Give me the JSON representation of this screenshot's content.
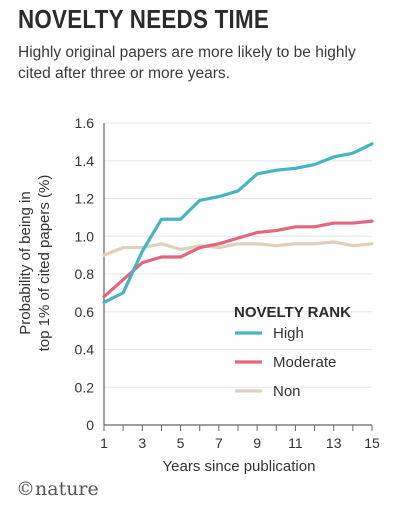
{
  "title": "NOVELTY NEEDS TIME",
  "subtitle": "Highly original papers are more likely to be highly cited after three or more years.",
  "logo": {
    "text": "nature",
    "copyright_symbol": "©"
  },
  "colors": {
    "high": "#45b5c2",
    "moderate": "#e3677c",
    "non": "#dfcfbc",
    "axis": "#666666",
    "grid": "#e6e6e6",
    "text": "#333333"
  },
  "chart_data": {
    "type": "line",
    "title": "NOVELTY NEEDS TIME",
    "subtitle": "Highly original papers are more likely to be highly cited after three or more years.",
    "xlabel": "Years since publication",
    "ylabel": "Probability of being in top 1% of cited papers (%)",
    "ylabel_lines": [
      "Probability of being in",
      "top 1% of cited papers (%)"
    ],
    "xlim": [
      1,
      15
    ],
    "ylim": [
      0,
      1.6
    ],
    "x_ticks": [
      1,
      3,
      5,
      7,
      9,
      11,
      13,
      15
    ],
    "y_ticks": [
      0,
      0.2,
      0.4,
      0.6,
      0.8,
      1.0,
      1.2,
      1.4,
      1.6
    ],
    "y_tick_labels": [
      "0",
      "0.2",
      "0.4",
      "0.6",
      "0.8",
      "1.0",
      "1.2",
      "1.4",
      "1.6"
    ],
    "grid": "horizontal",
    "legend_title": "NOVELTY RANK",
    "legend_position": "lower-right",
    "x": [
      1,
      2,
      3,
      4,
      5,
      6,
      7,
      8,
      9,
      10,
      11,
      12,
      13,
      14,
      15
    ],
    "series": [
      {
        "name": "High",
        "color": "#45b5c2",
        "values": [
          0.65,
          0.7,
          0.92,
          1.09,
          1.09,
          1.19,
          1.21,
          1.24,
          1.33,
          1.35,
          1.36,
          1.38,
          1.42,
          1.44,
          1.49
        ]
      },
      {
        "name": "Moderate",
        "color": "#e3677c",
        "values": [
          0.68,
          0.77,
          0.86,
          0.89,
          0.89,
          0.94,
          0.96,
          0.99,
          1.02,
          1.03,
          1.05,
          1.05,
          1.07,
          1.07,
          1.08
        ]
      },
      {
        "name": "Non",
        "color": "#dfcfbc",
        "values": [
          0.9,
          0.94,
          0.94,
          0.96,
          0.93,
          0.95,
          0.94,
          0.96,
          0.96,
          0.95,
          0.96,
          0.96,
          0.97,
          0.95,
          0.96
        ]
      }
    ]
  }
}
